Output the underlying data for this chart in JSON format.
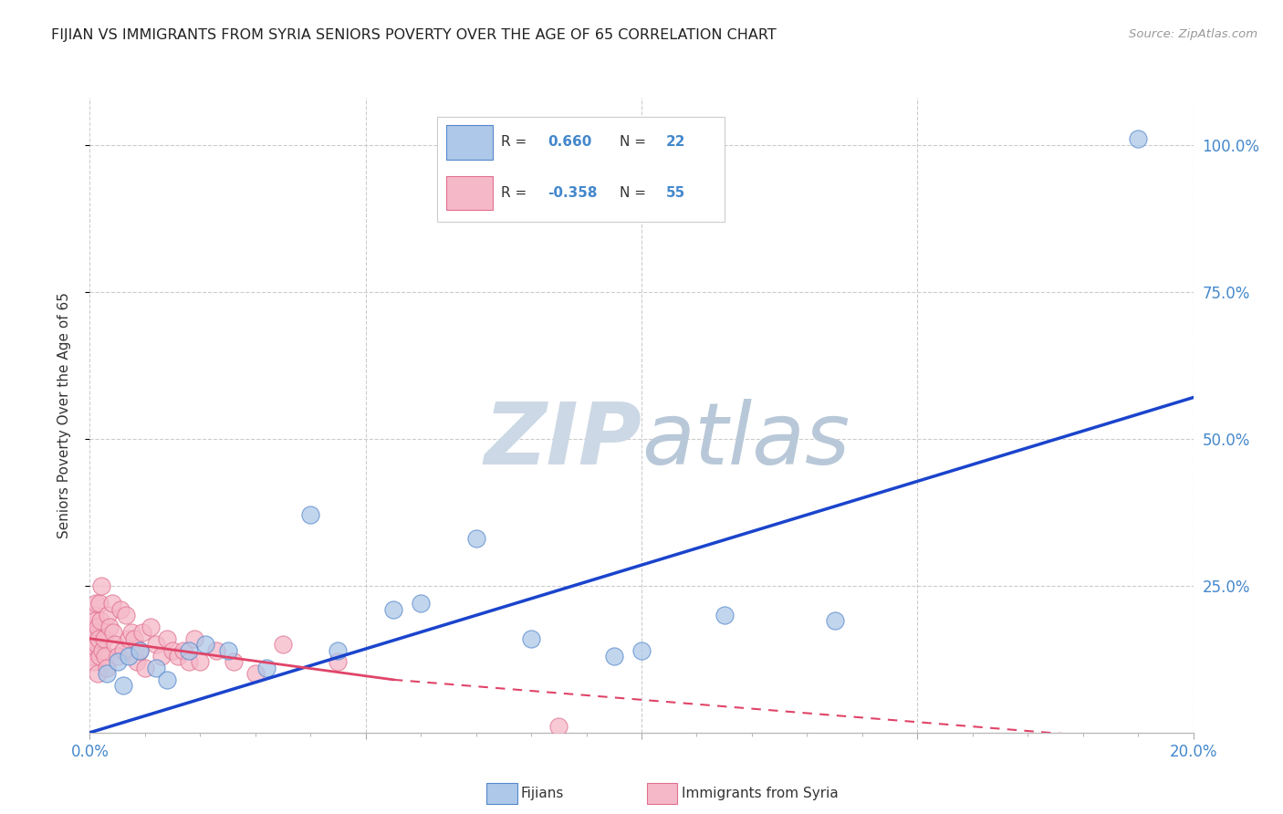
{
  "title": "FIJIAN VS IMMIGRANTS FROM SYRIA SENIORS POVERTY OVER THE AGE OF 65 CORRELATION CHART",
  "source": "Source: ZipAtlas.com",
  "ylabel_label": "Seniors Poverty Over the Age of 65",
  "x_tick_labels": [
    "0.0%",
    "",
    "",
    "",
    "20.0%"
  ],
  "x_tick_values": [
    0,
    5,
    10,
    15,
    20
  ],
  "x_minor_ticks": [
    1,
    2,
    3,
    4,
    6,
    7,
    8,
    9,
    11,
    12,
    13,
    14,
    16,
    17,
    18,
    19
  ],
  "y_tick_labels": [
    "25.0%",
    "50.0%",
    "75.0%",
    "100.0%"
  ],
  "y_tick_values": [
    25,
    50,
    75,
    100
  ],
  "xlim": [
    0,
    20
  ],
  "ylim": [
    0,
    108
  ],
  "background_color": "#ffffff",
  "grid_color": "#cccccc",
  "fijian_color": "#adc8e8",
  "fijian_edge_color": "#5588cc",
  "syria_color": "#f5b8c8",
  "syria_edge_color": "#e07090",
  "fijian_line_color": "#1a44cc",
  "syria_line_color": "#e04468",
  "title_color": "#222222",
  "axis_label_color": "#333333",
  "tick_color": "#4488cc",
  "watermark_color": "#dde8f0",
  "R_fijian": "0.660",
  "N_fijian": "22",
  "R_syria": "-0.358",
  "N_syria": "55",
  "legend_label_fijian": "Fijians",
  "legend_label_syria": "Immigrants from Syria",
  "fijian_x": [
    0.3,
    0.5,
    0.6,
    0.7,
    0.9,
    1.2,
    1.4,
    1.8,
    2.1,
    2.5,
    3.2,
    4.0,
    4.5,
    5.5,
    6.0,
    7.0,
    8.0,
    9.5,
    10.0,
    11.5,
    13.5,
    19.0
  ],
  "fijian_y": [
    10,
    12,
    8,
    13,
    14,
    11,
    9,
    14,
    15,
    14,
    11,
    37,
    14,
    21,
    22,
    33,
    16,
    13,
    14,
    20,
    19,
    101
  ],
  "syria_x": [
    0.02,
    0.03,
    0.04,
    0.05,
    0.06,
    0.07,
    0.08,
    0.09,
    0.1,
    0.11,
    0.12,
    0.13,
    0.14,
    0.15,
    0.16,
    0.17,
    0.18,
    0.19,
    0.2,
    0.22,
    0.25,
    0.28,
    0.3,
    0.33,
    0.36,
    0.4,
    0.43,
    0.46,
    0.5,
    0.55,
    0.6,
    0.65,
    0.7,
    0.75,
    0.8,
    0.85,
    0.9,
    0.95,
    1.0,
    1.1,
    1.2,
    1.3,
    1.4,
    1.5,
    1.6,
    1.7,
    1.8,
    1.9,
    2.0,
    2.3,
    2.6,
    3.0,
    3.5,
    4.5,
    8.5
  ],
  "syria_y": [
    13,
    15,
    17,
    16,
    14,
    18,
    12,
    20,
    19,
    22,
    15,
    17,
    10,
    18,
    16,
    13,
    22,
    19,
    25,
    14,
    16,
    13,
    11,
    20,
    18,
    22,
    17,
    15,
    13,
    21,
    14,
    20,
    16,
    17,
    16,
    12,
    14,
    17,
    11,
    18,
    15,
    13,
    16,
    14,
    13,
    14,
    12,
    16,
    12,
    14,
    12,
    10,
    15,
    12,
    1
  ],
  "fijian_trend": [
    0,
    20,
    0,
    57
  ],
  "syria_trend_solid": [
    0,
    5.5,
    16,
    9
  ],
  "syria_trend_dashed": [
    5.5,
    20,
    9,
    -2
  ]
}
